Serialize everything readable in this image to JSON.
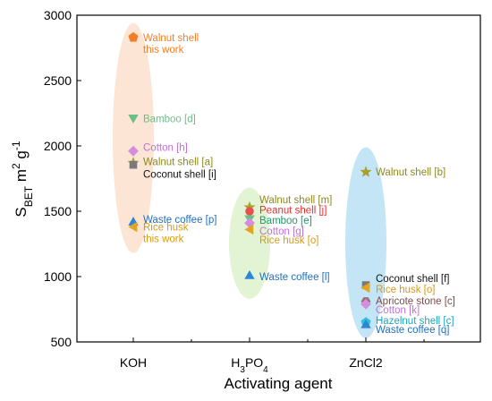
{
  "chart_data": {
    "type": "scatter",
    "xlabel": "Activating agent",
    "ylabel": {
      "main": "S",
      "sub": "BET",
      "rest": " m",
      "sup1": "2",
      "rest2": " g",
      "sup2": "-1"
    },
    "ylim": [
      500,
      3000
    ],
    "yticks": [
      500,
      1000,
      1500,
      2000,
      2500,
      3000
    ],
    "categories": [
      {
        "label": "KOH"
      },
      {
        "label": "H",
        "sub": "3",
        "label2": "PO",
        "sub2": "4"
      },
      {
        "label": "ZnCl2"
      }
    ],
    "grid": false,
    "ellipses": [
      {
        "category": 0,
        "ymin": 1180,
        "ymax": 2940,
        "color": "#fce0cc"
      },
      {
        "category": 1,
        "ymin": 830,
        "ymax": 1680,
        "color": "#ddf2cc"
      },
      {
        "category": 2,
        "ymin": 530,
        "ymax": 1990,
        "color": "#b8e0f4"
      }
    ],
    "points": [
      {
        "category": 0,
        "y": 2830,
        "marker": "pentagon",
        "color": "#f07f2a",
        "label": [
          "Walnut shell",
          "this work"
        ],
        "label_color": "#f07f2a",
        "label_y": 2830
      },
      {
        "category": 0,
        "y": 2210,
        "marker": "triangle-down",
        "color": "#6cbf84",
        "label": [
          "Bamboo [d]"
        ],
        "label_color": "#6cbf84",
        "label_y": 2210
      },
      {
        "category": 0,
        "y": 1960,
        "marker": "diamond",
        "color": "#d38ee0",
        "label": [
          "Cotton [h]"
        ],
        "label_color": "#c070d8",
        "label_y": 1990
      },
      {
        "category": 0,
        "y": 1870,
        "marker": "star",
        "color": "#a6a230",
        "label": [
          "Walnut shell [a]"
        ],
        "label_color": "#8c8a1c",
        "label_y": 1880
      },
      {
        "category": 0,
        "y": 1855,
        "marker": "square",
        "color": "#7a7a7a",
        "label": [
          "Coconut shell [i]"
        ],
        "label_color": "#111111",
        "label_y": 1785
      },
      {
        "category": 0,
        "y": 1420,
        "marker": "triangle-up",
        "color": "#2f86d6",
        "label": [
          "Waste coffee [p]"
        ],
        "label_color": "#1f6fc0",
        "label_y": 1440
      },
      {
        "category": 0,
        "y": 1380,
        "marker": "triangle-left",
        "color": "#e3a520",
        "label": [
          "Rice husk",
          "this work"
        ],
        "label_color": "#d99a10",
        "label_y": 1380
      },
      {
        "category": 1,
        "y": 1530,
        "marker": "star",
        "color": "#a6a230",
        "label": [
          "Walnut shell [m]"
        ],
        "label_color": "#8c8a1c",
        "label_y": 1590
      },
      {
        "category": 1,
        "y": 1500,
        "marker": "circle",
        "color": "#e85050",
        "label": [
          "Peanut shell [j]"
        ],
        "label_color": "#e03030",
        "label_y": 1510
      },
      {
        "category": 1,
        "y": 1440,
        "marker": "triangle-down",
        "color": "#6cbf84",
        "label": [
          "Bamboo [e]"
        ],
        "label_color": "#1e9a6c",
        "label_y": 1430
      },
      {
        "category": 1,
        "y": 1410,
        "marker": "diamond",
        "color": "#d38ee0",
        "label": [
          "Cotton [g]"
        ],
        "label_color": "#c070d8",
        "label_y": 1350
      },
      {
        "category": 1,
        "y": 1360,
        "marker": "triangle-left",
        "color": "#e3a520",
        "label": [
          "Rice husk [o]"
        ],
        "label_color": "#d99a10",
        "label_y": 1280
      },
      {
        "category": 1,
        "y": 1010,
        "marker": "triangle-up",
        "color": "#2f86d6",
        "label": [
          "Waste coffee [l]"
        ],
        "label_color": "#1f6fc0",
        "label_y": 1000
      },
      {
        "category": 2,
        "y": 1800,
        "marker": "star",
        "color": "#a6a230",
        "label": [
          "Walnut shell [b]"
        ],
        "label_color": "#8c8a1c",
        "label_y": 1800
      },
      {
        "category": 2,
        "y": 935,
        "marker": "square",
        "color": "#7a7a7a",
        "label": [
          "Coconut shell [f]"
        ],
        "label_color": "#111111",
        "label_y": 985
      },
      {
        "category": 2,
        "y": 915,
        "marker": "triangle-left",
        "color": "#e3a520",
        "label": [
          "Rice husk [o]"
        ],
        "label_color": "#d99a10",
        "label_y": 905
      },
      {
        "category": 2,
        "y": 810,
        "marker": "hexagon",
        "color": "#9a7070",
        "label": [
          "Apricote stone [c]"
        ],
        "label_color": "#7a4a4a",
        "label_y": 815
      },
      {
        "category": 2,
        "y": 790,
        "marker": "diamond",
        "color": "#d38ee0",
        "label": [
          "Cotton [k]"
        ],
        "label_color": "#c070d8",
        "label_y": 745
      },
      {
        "category": 2,
        "y": 650,
        "marker": "pentagon",
        "color": "#2fc2d6",
        "label": [
          "Hazelnut shell [c]"
        ],
        "label_color": "#1aaac0",
        "label_y": 665
      },
      {
        "category": 2,
        "y": 635,
        "marker": "triangle-up",
        "color": "#2f86d6",
        "label": [
          "Waste coffee [q]"
        ],
        "label_color": "#1f6fc0",
        "label_y": 595
      }
    ]
  }
}
